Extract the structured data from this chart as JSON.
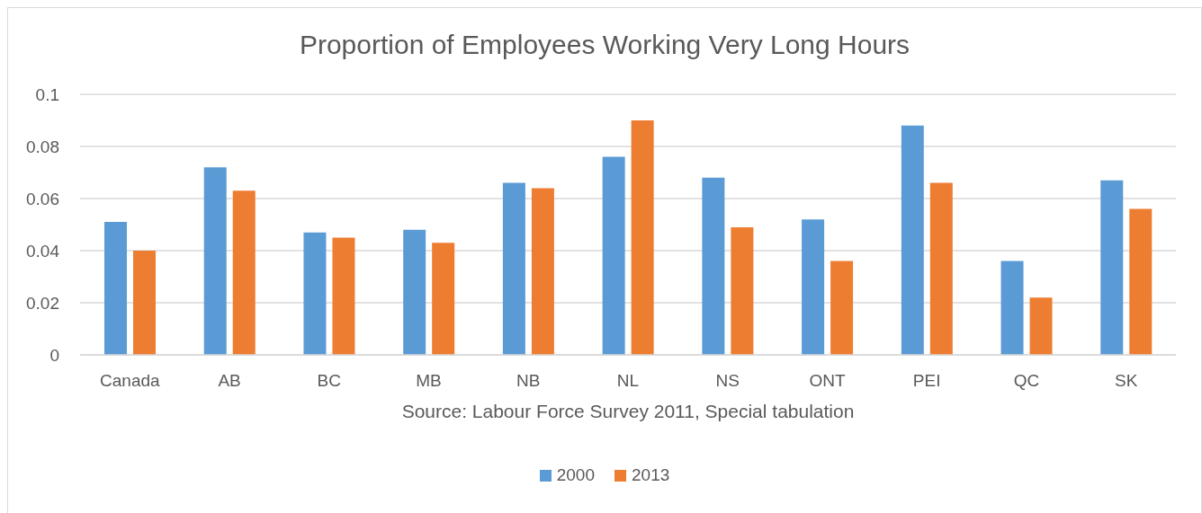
{
  "chart_data": {
    "type": "bar",
    "title": "Proportion of Employees Working Very Long Hours",
    "categories": [
      "Canada",
      "AB",
      "BC",
      "MB",
      "NB",
      "NL",
      "NS",
      "ONT",
      "PEI",
      "QC",
      "SK"
    ],
    "series": [
      {
        "name": "2000",
        "color": "#5b9bd5",
        "values": [
          0.051,
          0.072,
          0.047,
          0.048,
          0.066,
          0.076,
          0.068,
          0.052,
          0.088,
          0.036,
          0.067
        ]
      },
      {
        "name": "2013",
        "color": "#ed7d31",
        "values": [
          0.04,
          0.063,
          0.045,
          0.043,
          0.064,
          0.09,
          0.049,
          0.036,
          0.066,
          0.022,
          0.056
        ]
      }
    ],
    "ylim": [
      0,
      0.1
    ],
    "yticks": [
      0,
      0.02,
      0.04,
      0.06,
      0.08,
      0.1
    ],
    "grid": "y",
    "legend": "bottom",
    "annotations": [
      "Source: Labour Force Survey 2011, Special tabulation"
    ]
  }
}
